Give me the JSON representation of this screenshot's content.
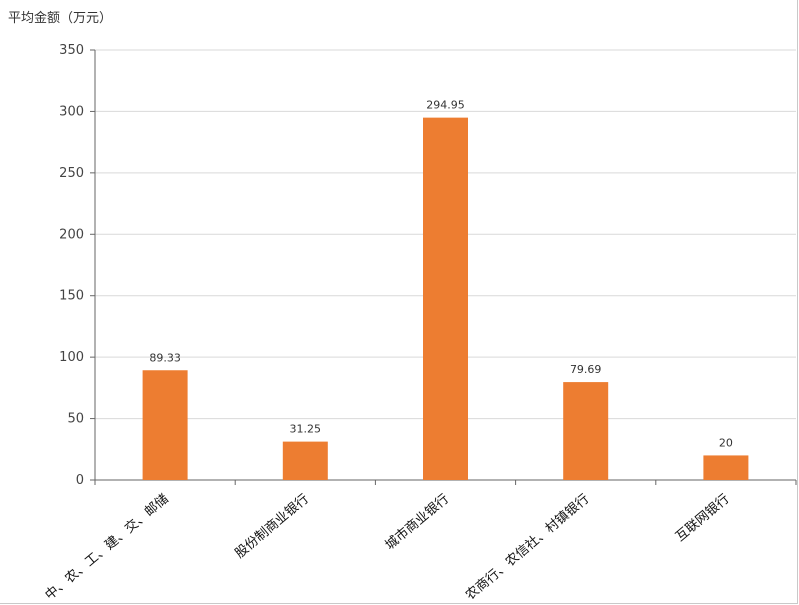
{
  "chart_data": {
    "type": "bar",
    "ylabel": "平均金额（万元）",
    "categories": [
      "中、农、工、建、交、邮储",
      "股份制商业银行",
      "城市商业银行",
      "农商行、农信社、村镇银行",
      "互联网银行"
    ],
    "values": [
      89.33,
      31.25,
      294.95,
      79.69,
      20
    ],
    "value_labels": [
      "89.33",
      "31.25",
      "294.95",
      "79.69",
      "20"
    ],
    "ylim": [
      0,
      350
    ],
    "yticks": [
      0,
      50,
      100,
      150,
      200,
      250,
      300,
      350
    ],
    "grid": true,
    "bar_color": "#ED7D31"
  }
}
